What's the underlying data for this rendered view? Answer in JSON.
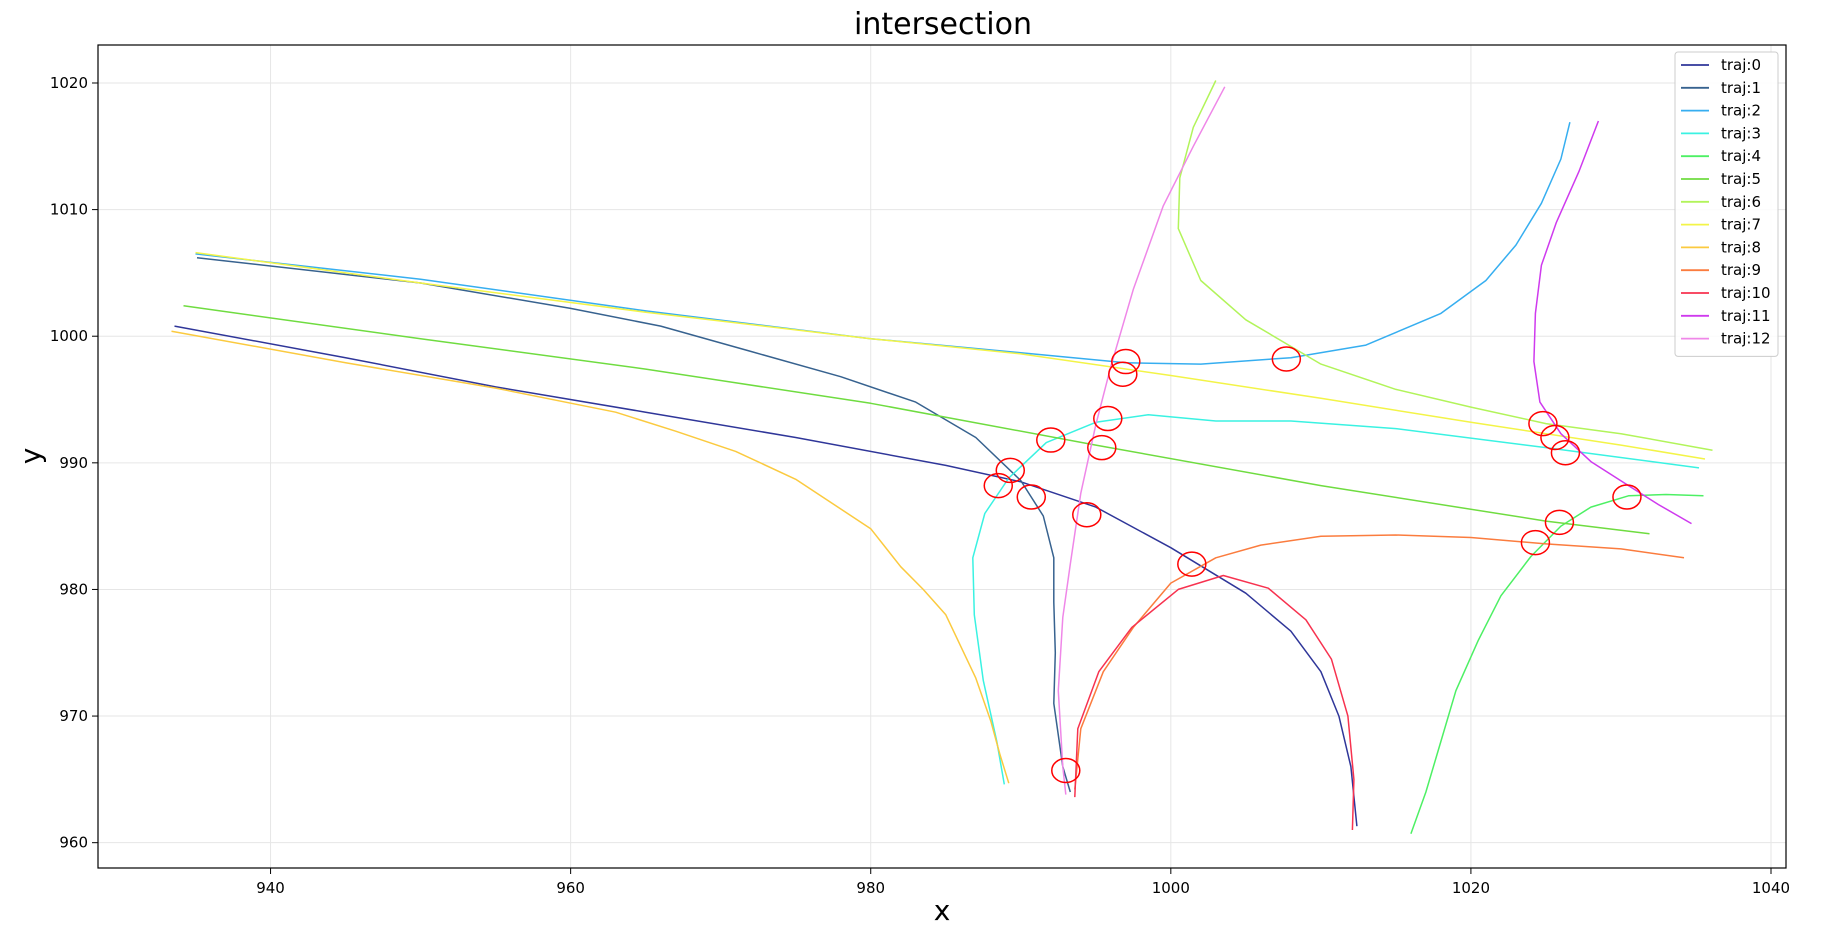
{
  "chart_data": {
    "type": "line",
    "title": "intersection",
    "xlabel": "x",
    "ylabel": "y",
    "xlim": [
      928.5,
      1041
    ],
    "ylim": [
      958,
      1023
    ],
    "xticks": [
      940,
      960,
      980,
      1000,
      1020,
      1040
    ],
    "yticks": [
      960,
      970,
      980,
      990,
      1000,
      1010,
      1020
    ],
    "grid": true,
    "legend_position": "top-right",
    "series": [
      {
        "name": "traj:0",
        "color": "#2f3699",
        "points": [
          [
            933.6,
            1000.8
          ],
          [
            945,
            998.3
          ],
          [
            955,
            996
          ],
          [
            965,
            994
          ],
          [
            975,
            992
          ],
          [
            985,
            989.8
          ],
          [
            990,
            988.5
          ],
          [
            995,
            986.5
          ],
          [
            1000,
            983.3
          ],
          [
            1005,
            979.7
          ],
          [
            1008,
            976.7
          ],
          [
            1010,
            973.5
          ],
          [
            1011.2,
            970
          ],
          [
            1012,
            966
          ],
          [
            1012.4,
            961.3
          ]
        ]
      },
      {
        "name": "traj:1",
        "color": "#37628f",
        "points": [
          [
            935.1,
            1006.2
          ],
          [
            950,
            1004.2
          ],
          [
            960,
            1002.2
          ],
          [
            966,
            1000.8
          ],
          [
            972,
            998.8
          ],
          [
            978,
            996.8
          ],
          [
            983,
            994.8
          ],
          [
            987,
            992
          ],
          [
            990,
            988.6
          ],
          [
            991.5,
            985.8
          ],
          [
            992.2,
            982.5
          ],
          [
            992.2,
            979
          ],
          [
            992.3,
            975
          ],
          [
            992.2,
            971
          ],
          [
            992.8,
            966
          ],
          [
            993.3,
            964
          ]
        ]
      },
      {
        "name": "traj:2",
        "color": "#36aef0",
        "points": [
          [
            935,
            1006.5
          ],
          [
            950,
            1004.5
          ],
          [
            965,
            1002
          ],
          [
            980,
            999.8
          ],
          [
            990,
            998.7
          ],
          [
            997,
            997.9
          ],
          [
            1002,
            997.8
          ],
          [
            1008,
            998.3
          ],
          [
            1013,
            999.3
          ],
          [
            1018,
            1001.8
          ],
          [
            1021,
            1004.4
          ],
          [
            1023,
            1007.2
          ],
          [
            1024.7,
            1010.5
          ],
          [
            1026,
            1014
          ],
          [
            1026.6,
            1016.9
          ]
        ]
      },
      {
        "name": "traj:3",
        "color": "#3af2e2",
        "points": [
          [
            988.9,
            964.6
          ],
          [
            988.4,
            968
          ],
          [
            987.5,
            972.8
          ],
          [
            986.9,
            978
          ],
          [
            986.8,
            982.5
          ],
          [
            987.6,
            986
          ],
          [
            989.2,
            988.8
          ],
          [
            991.7,
            991.6
          ],
          [
            995,
            993.2
          ],
          [
            998.5,
            993.8
          ],
          [
            1003,
            993.3
          ],
          [
            1008,
            993.3
          ],
          [
            1015,
            992.7
          ],
          [
            1025,
            991.2
          ],
          [
            1035.2,
            989.6
          ]
        ]
      },
      {
        "name": "traj:4",
        "color": "#4df064",
        "points": [
          [
            1016,
            960.7
          ],
          [
            1017,
            964
          ],
          [
            1018,
            968
          ],
          [
            1019,
            972
          ],
          [
            1020.5,
            976
          ],
          [
            1022,
            979.5
          ],
          [
            1024,
            982.6
          ],
          [
            1026,
            985
          ],
          [
            1028,
            986.5
          ],
          [
            1030.5,
            987.4
          ],
          [
            1033,
            987.5
          ],
          [
            1035.5,
            987.4
          ]
        ]
      },
      {
        "name": "traj:5",
        "color": "#6fdc40",
        "points": [
          [
            934.2,
            1002.4
          ],
          [
            950,
            999.8
          ],
          [
            965,
            997.4
          ],
          [
            980,
            994.7
          ],
          [
            995,
            991.4
          ],
          [
            1010,
            988.2
          ],
          [
            1025,
            985.4
          ],
          [
            1031.9,
            984.4
          ]
        ]
      },
      {
        "name": "traj:6",
        "color": "#b2f45a",
        "points": [
          [
            1003,
            1020.2
          ],
          [
            1001.5,
            1016.5
          ],
          [
            1000.6,
            1012.5
          ],
          [
            1000.5,
            1008.5
          ],
          [
            1002,
            1004.4
          ],
          [
            1005,
            1001.3
          ],
          [
            1010,
            997.8
          ],
          [
            1015,
            995.8
          ],
          [
            1020,
            994.4
          ],
          [
            1025,
            993.1
          ],
          [
            1030,
            992.3
          ],
          [
            1036.1,
            991
          ]
        ]
      },
      {
        "name": "traj:7",
        "color": "#f3f447",
        "points": [
          [
            935,
            1006.6
          ],
          [
            950,
            1004.2
          ],
          [
            965,
            1001.9
          ],
          [
            980,
            999.8
          ],
          [
            990,
            998.6
          ],
          [
            1000,
            996.9
          ],
          [
            1010,
            995.1
          ],
          [
            1020,
            993.2
          ],
          [
            1030,
            991.4
          ],
          [
            1035.6,
            990.3
          ]
        ]
      },
      {
        "name": "traj:8",
        "color": "#fbca3f",
        "points": [
          [
            933.4,
            1000.4
          ],
          [
            945,
            997.9
          ],
          [
            955,
            995.9
          ],
          [
            963,
            994
          ],
          [
            967,
            992.5
          ],
          [
            971,
            990.9
          ],
          [
            975,
            988.7
          ],
          [
            980,
            984.8
          ],
          [
            982,
            981.8
          ],
          [
            983.5,
            980
          ],
          [
            985,
            978
          ],
          [
            986,
            975.5
          ],
          [
            987,
            973
          ],
          [
            988,
            969.6
          ],
          [
            988.6,
            967
          ],
          [
            989.2,
            964.7
          ]
        ]
      },
      {
        "name": "traj:9",
        "color": "#fb7c3e",
        "points": [
          [
            993.6,
            964.2
          ],
          [
            994,
            969
          ],
          [
            995.5,
            973.5
          ],
          [
            997.5,
            977
          ],
          [
            1000,
            980.5
          ],
          [
            1003,
            982.5
          ],
          [
            1006,
            983.5
          ],
          [
            1010,
            984.2
          ],
          [
            1015,
            984.3
          ],
          [
            1020,
            984.1
          ],
          [
            1025,
            983.6
          ],
          [
            1030,
            983.2
          ],
          [
            1034.2,
            982.5
          ]
        ]
      },
      {
        "name": "traj:10",
        "color": "#f7324f",
        "points": [
          [
            993.6,
            963.6
          ],
          [
            993.8,
            969
          ],
          [
            995.2,
            973.5
          ],
          [
            997.4,
            977
          ],
          [
            1000.5,
            980
          ],
          [
            1003.5,
            981.1
          ],
          [
            1006.5,
            980.1
          ],
          [
            1009,
            977.6
          ],
          [
            1010.7,
            974.5
          ],
          [
            1011.8,
            970
          ],
          [
            1012.2,
            965
          ],
          [
            1012.1,
            961
          ]
        ]
      },
      {
        "name": "traj:11",
        "color": "#cf3aee",
        "points": [
          [
            1028.5,
            1017
          ],
          [
            1027.2,
            1013
          ],
          [
            1025.7,
            1009
          ],
          [
            1024.7,
            1005.6
          ],
          [
            1024.3,
            1001.8
          ],
          [
            1024.2,
            998
          ],
          [
            1024.6,
            994.8
          ],
          [
            1026,
            992.3
          ],
          [
            1028,
            990.1
          ],
          [
            1030.5,
            988.2
          ],
          [
            1032.5,
            986.7
          ],
          [
            1034.7,
            985.2
          ]
        ]
      },
      {
        "name": "traj:12",
        "color": "#ef87e8",
        "points": [
          [
            1003.6,
            1019.7
          ],
          [
            1001.5,
            1015
          ],
          [
            999.5,
            1010.3
          ],
          [
            997.5,
            1003.7
          ],
          [
            996,
            997.6
          ],
          [
            995,
            993
          ],
          [
            994,
            987.6
          ],
          [
            993.3,
            982
          ],
          [
            992.8,
            977.8
          ],
          [
            992.5,
            972
          ],
          [
            992.8,
            966
          ],
          [
            993,
            963.8
          ]
        ]
      }
    ],
    "intersection_markers": [
      [
        997,
        998
      ],
      [
        1007.7,
        998.2
      ],
      [
        996.8,
        997
      ],
      [
        992,
        991.8
      ],
      [
        995.8,
        993.5
      ],
      [
        995.4,
        991.2
      ],
      [
        989.3,
        989.4
      ],
      [
        988.5,
        988.2
      ],
      [
        990.7,
        987.3
      ],
      [
        994.4,
        985.9
      ],
      [
        1001.4,
        982
      ],
      [
        1024.8,
        993.1
      ],
      [
        1025.6,
        992
      ],
      [
        1026.3,
        990.8
      ],
      [
        1030.4,
        987.3
      ],
      [
        1025.9,
        985.3
      ],
      [
        1024.3,
        983.7
      ],
      [
        993,
        965.7
      ]
    ],
    "marker_color": "#ff0000"
  }
}
